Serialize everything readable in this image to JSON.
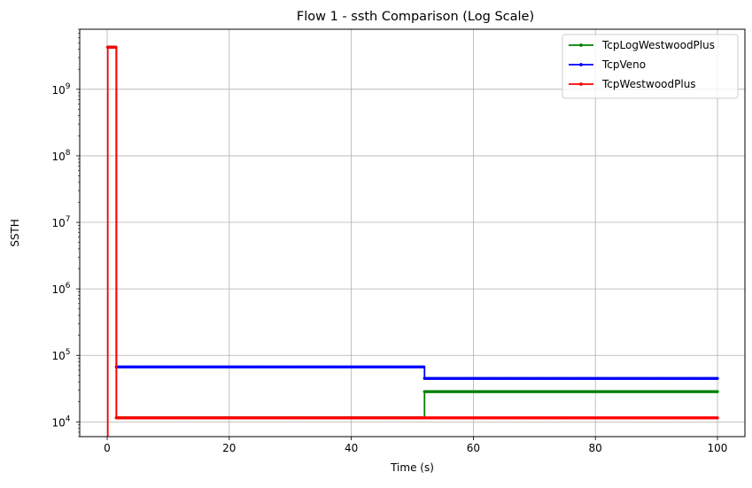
{
  "chart_data": {
    "type": "line",
    "title": "Flow 1 - ssth Comparison (Log Scale)",
    "xlabel": "Time (s)",
    "ylabel": "SSTH",
    "x_scale": "linear",
    "y_scale": "log",
    "xlim": [
      -4.5,
      104.5
    ],
    "ylim": [
      6000,
      8000000000
    ],
    "x_ticks": [
      0,
      20,
      40,
      60,
      80,
      100
    ],
    "x_tick_labels": [
      "0",
      "20",
      "40",
      "60",
      "80",
      "100"
    ],
    "y_ticks": [
      10000,
      100000,
      1000000,
      10000000,
      100000000,
      1000000000
    ],
    "y_tick_labels": [
      {
        "base": "10",
        "exp": "4"
      },
      {
        "base": "10",
        "exp": "5"
      },
      {
        "base": "10",
        "exp": "6"
      },
      {
        "base": "10",
        "exp": "7"
      },
      {
        "base": "10",
        "exp": "8"
      },
      {
        "base": "10",
        "exp": "9"
      }
    ],
    "grid": true,
    "legend_position": "top-right",
    "series": [
      {
        "name": "TcpLogWestwoodPlus",
        "color": "#008000",
        "x": [
          0.1,
          0.2,
          1.5,
          1.5,
          52,
          52,
          100
        ],
        "y": [
          4294967295,
          4294967295,
          4294967295,
          11500,
          11500,
          28500,
          28500
        ]
      },
      {
        "name": "TcpVeno",
        "color": "#0000ff",
        "x": [
          0.1,
          0.2,
          1.5,
          1.5,
          52,
          52,
          100
        ],
        "y": [
          4294967295,
          4294967295,
          4294967295,
          67000,
          67000,
          45000,
          45000
        ]
      },
      {
        "name": "TcpWestwoodPlus",
        "color": "#ff0000",
        "x": [
          0.1,
          0.1,
          0.2,
          1.5,
          1.5,
          52,
          100
        ],
        "y": [
          5000,
          4294967295,
          4294967295,
          4294967295,
          11500,
          11500,
          11500
        ]
      }
    ]
  }
}
